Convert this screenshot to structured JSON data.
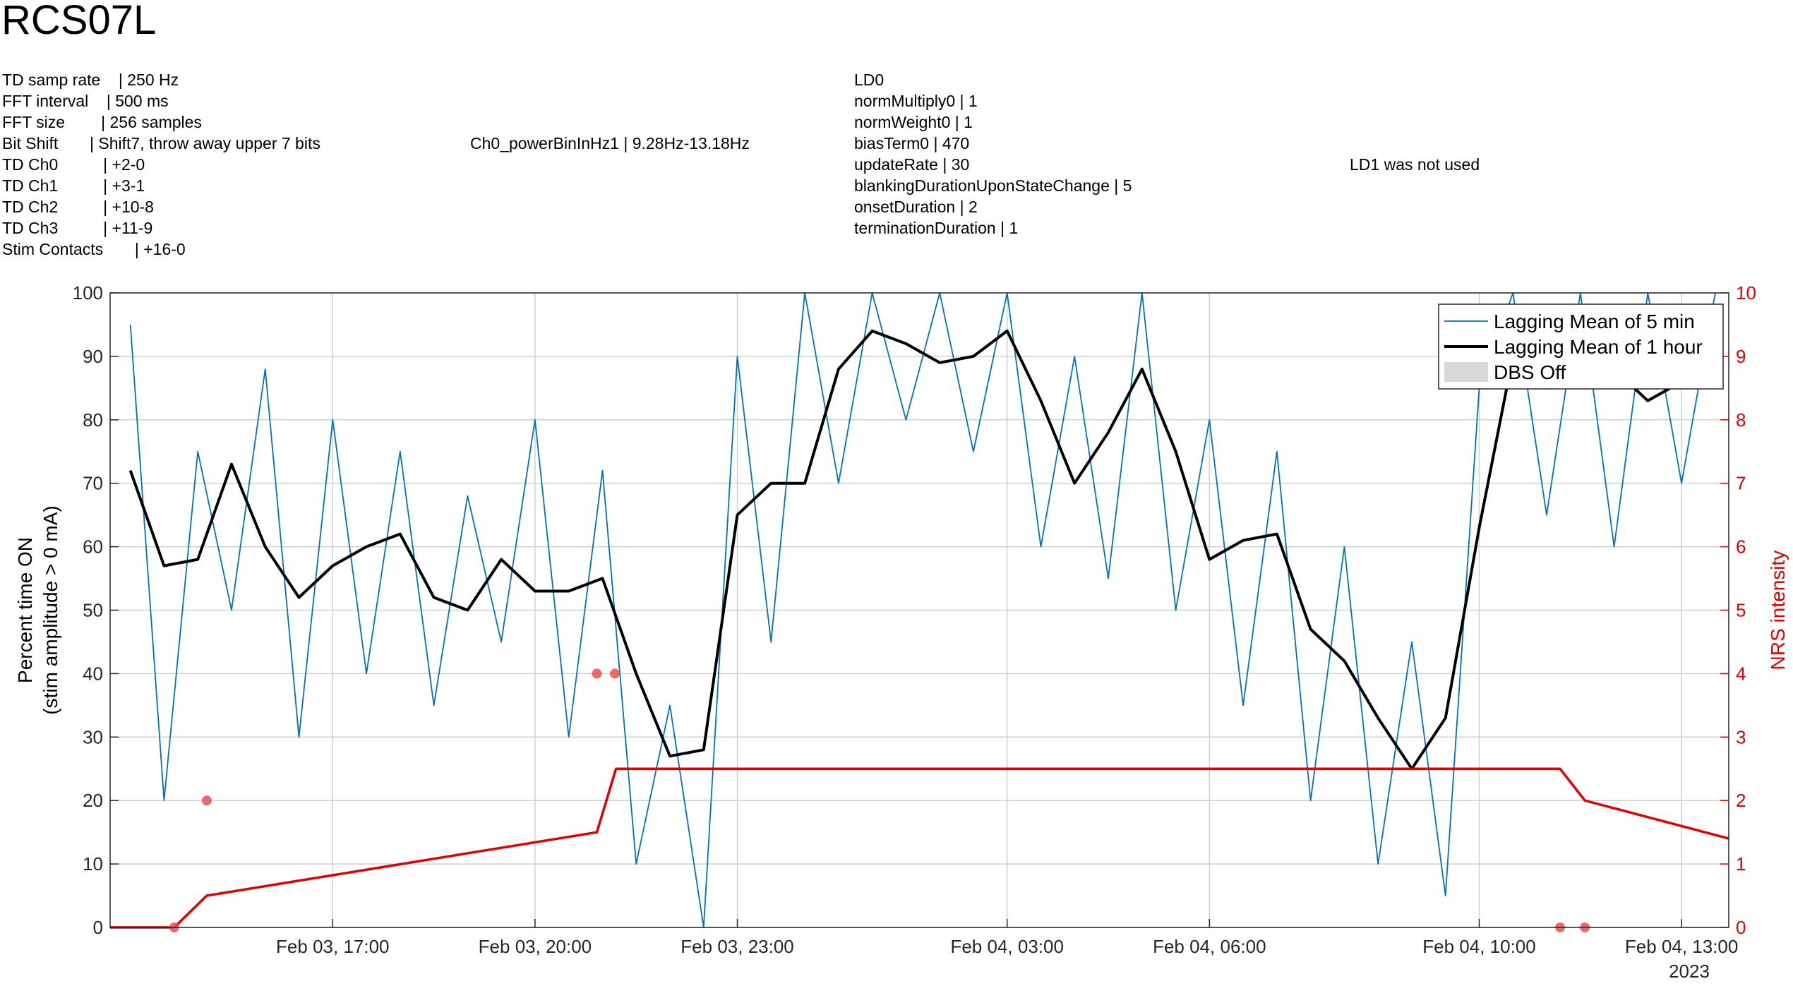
{
  "title": "RCS07L",
  "info": {
    "settings": [
      "TD samp rate    | 250 Hz",
      "FFT interval    | 500 ms",
      "FFT size        | 256 samples",
      "Bit Shift       | Shift7, throw away upper 7 bits",
      "TD Ch0          | +2-0",
      "TD Ch1          | +3-1",
      "TD Ch2          | +10-8",
      "TD Ch3          | +11-9",
      "Stim Contacts       | +16-0"
    ],
    "power_band": "Ch0_powerBinInHz1 | 9.28Hz-13.18Hz",
    "ld0": [
      "LD0",
      "normMultiply0 | 1",
      "normWeight0 | 1",
      "biasTerm0 | 470",
      "updateRate | 30",
      "blankingDurationUponStateChange | 5",
      "onsetDuration | 2",
      "terminationDuration | 1"
    ],
    "ld1": "LD1 was not used"
  },
  "chart_data": {
    "type": "line",
    "ylabel": [
      "Percent time ON",
      "(stim amplitude > 0 mA)"
    ],
    "y2label": "NRS intensity",
    "x_year_label": "2023",
    "xlim": [
      "2023-02-03 13:42",
      "2023-02-04 13:42"
    ],
    "xticks": [
      {
        "value": "2023-02-03 17:00",
        "label": "Feb 03, 17:00"
      },
      {
        "value": "2023-02-03 20:00",
        "label": "Feb 03, 20:00"
      },
      {
        "value": "2023-02-03 23:00",
        "label": "Feb 03, 23:00"
      },
      {
        "value": "2023-02-04 03:00",
        "label": "Feb 04, 03:00"
      },
      {
        "value": "2023-02-04 06:00",
        "label": "Feb 04, 06:00"
      },
      {
        "value": "2023-02-04 10:00",
        "label": "Feb 04, 10:00"
      },
      {
        "value": "2023-02-04 13:00",
        "label": "Feb 04, 13:00"
      }
    ],
    "ylim": [
      0,
      100
    ],
    "yticks": [
      0,
      10,
      20,
      30,
      40,
      50,
      60,
      70,
      80,
      90,
      100
    ],
    "y2lim": [
      0,
      10
    ],
    "y2ticks": [
      0,
      1,
      2,
      3,
      4,
      5,
      6,
      7,
      8,
      9,
      10
    ],
    "y2color": "#e00000",
    "grid": true,
    "legend": "upper right",
    "x": [
      "2023-02-03 14:00",
      "2023-02-03 14:30",
      "2023-02-03 15:00",
      "2023-02-03 15:30",
      "2023-02-03 16:00",
      "2023-02-03 16:30",
      "2023-02-03 17:00",
      "2023-02-03 17:30",
      "2023-02-03 18:00",
      "2023-02-03 18:30",
      "2023-02-03 19:00",
      "2023-02-03 19:30",
      "2023-02-03 20:00",
      "2023-02-03 20:30",
      "2023-02-03 21:00",
      "2023-02-03 21:30",
      "2023-02-03 22:00",
      "2023-02-03 22:30",
      "2023-02-03 23:00",
      "2023-02-03 23:30",
      "2023-02-04 00:00",
      "2023-02-04 00:30",
      "2023-02-04 01:00",
      "2023-02-04 01:30",
      "2023-02-04 02:00",
      "2023-02-04 02:30",
      "2023-02-04 03:00",
      "2023-02-04 03:30",
      "2023-02-04 04:00",
      "2023-02-04 04:30",
      "2023-02-04 05:00",
      "2023-02-04 05:30",
      "2023-02-04 06:00",
      "2023-02-04 06:30",
      "2023-02-04 07:00",
      "2023-02-04 07:30",
      "2023-02-04 08:00",
      "2023-02-04 08:30",
      "2023-02-04 09:00",
      "2023-02-04 09:30",
      "2023-02-04 10:00",
      "2023-02-04 10:30",
      "2023-02-04 11:00",
      "2023-02-04 11:30",
      "2023-02-04 12:00",
      "2023-02-04 12:30",
      "2023-02-04 13:00",
      "2023-02-04 13:30"
    ],
    "series": [
      {
        "name": "Lagging Mean of 5 min",
        "color": "#0072bd",
        "kind": "line",
        "values": [
          95,
          20,
          75,
          50,
          88,
          30,
          80,
          40,
          75,
          35,
          68,
          45,
          80,
          30,
          72,
          10,
          35,
          0,
          90,
          45,
          100,
          70,
          100,
          80,
          100,
          75,
          100,
          60,
          90,
          55,
          100,
          50,
          80,
          35,
          75,
          20,
          60,
          10,
          45,
          5,
          85,
          100,
          65,
          100,
          60,
          100,
          70,
          100
        ]
      },
      {
        "name": "Lagging Mean of 1 hour",
        "color": "#000000",
        "kind": "line",
        "values": [
          72,
          57,
          58,
          73,
          60,
          52,
          57,
          60,
          62,
          52,
          50,
          58,
          53,
          53,
          55,
          40,
          27,
          28,
          65,
          70,
          70,
          88,
          94,
          92,
          89,
          90,
          94,
          83,
          70,
          78,
          88,
          75,
          58,
          61,
          62,
          47,
          42,
          33,
          25,
          33,
          63,
          90,
          85,
          86,
          88,
          83,
          86,
          89
        ]
      },
      {
        "color": "#e00000",
        "kind": "line",
        "axis": "y2",
        "x": [
          "2023-02-03 13:42",
          "2023-02-03 14:39",
          "2023-02-03 15:08",
          "2023-02-03 20:55",
          "2023-02-03 21:12",
          "2023-02-04 11:12",
          "2023-02-04 11:34",
          "2023-02-04 13:42"
        ],
        "values": [
          0,
          0,
          0.5,
          1.5,
          2.5,
          2.5,
          2,
          1.4
        ]
      },
      {
        "color": "#e85050",
        "kind": "scatter",
        "axis": "y2",
        "x": [
          "2023-02-03 14:39",
          "2023-02-03 15:08",
          "2023-02-03 20:55",
          "2023-02-03 21:11",
          "2023-02-04 11:12",
          "2023-02-04 11:34"
        ],
        "values": [
          0,
          2,
          4,
          4,
          0,
          0
        ]
      }
    ],
    "legend_patches": [
      {
        "name": "DBS Off",
        "color": "#d9d9d9"
      }
    ]
  }
}
